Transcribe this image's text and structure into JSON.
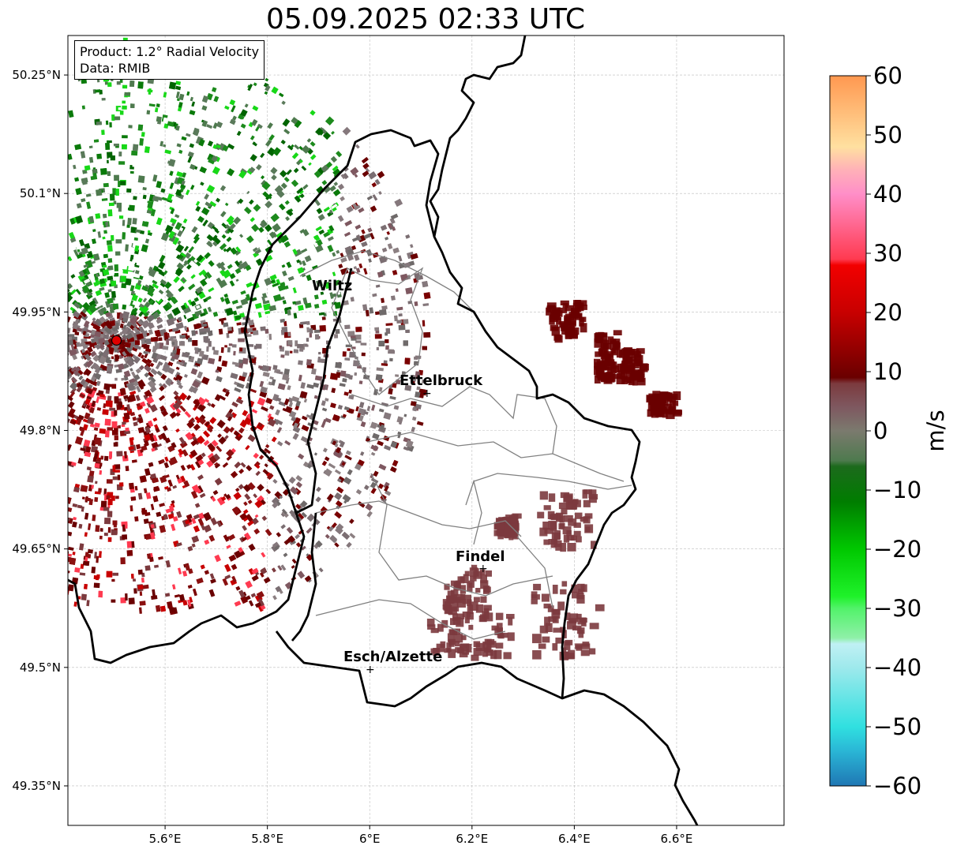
{
  "title": "05.09.2025 02:33 UTC",
  "info_box": {
    "product": "Product: 1.2° Radial Velocity",
    "data": "Data: RMIB"
  },
  "axes": {
    "lon_ticks": [
      "5.6°E",
      "5.8°E",
      "6°E",
      "6.2°E",
      "6.4°E",
      "6.6°E"
    ],
    "lat_ticks": [
      "50.25°N",
      "50.1°N",
      "49.95°N",
      "49.8°N",
      "49.65°N",
      "49.5°N",
      "49.35°N"
    ],
    "lon_tick_values": [
      5.6,
      5.8,
      6.0,
      6.2,
      6.4,
      6.6
    ],
    "lat_tick_values": [
      50.25,
      50.1,
      49.95,
      49.8,
      49.65,
      49.5,
      49.35
    ],
    "lon_range": [
      5.41,
      6.81
    ],
    "lat_range": [
      49.3,
      50.3
    ],
    "grid": true
  },
  "cities": [
    {
      "name": "Wiltz",
      "lon": 5.93,
      "lat": 49.965
    },
    {
      "name": "Ettelbruck",
      "lon": 6.104,
      "lat": 49.848
    },
    {
      "name": "Findel",
      "lon": 6.21,
      "lat": 49.627
    },
    {
      "name": "Esch/Alzette",
      "lon": 5.986,
      "lat": 49.498
    }
  ],
  "radar_site": {
    "lon": 5.505,
    "lat": 49.914,
    "color": "#e00000"
  },
  "colorbar": {
    "label": "m/s",
    "min": -60,
    "max": 60,
    "tick_labels": [
      "60",
      "50",
      "40",
      "30",
      "20",
      "10",
      "0",
      "−10",
      "−20",
      "−30",
      "−40",
      "−50",
      "−60"
    ],
    "tick_values": [
      60,
      50,
      40,
      30,
      20,
      10,
      0,
      -10,
      -20,
      -30,
      -40,
      -50,
      -60
    ],
    "stops": [
      {
        "v": -60,
        "color": "#1f77b4"
      },
      {
        "v": -54,
        "color": "#2ab7d6"
      },
      {
        "v": -50,
        "color": "#30e0e0"
      },
      {
        "v": -40,
        "color": "#9ee9ec"
      },
      {
        "v": -36,
        "color": "#c0f0f4"
      },
      {
        "v": -35,
        "color": "#8ff0a8"
      },
      {
        "v": -30,
        "color": "#52f26a"
      },
      {
        "v": -28,
        "color": "#1ff22a"
      },
      {
        "v": -20,
        "color": "#00c800"
      },
      {
        "v": -12,
        "color": "#007d00"
      },
      {
        "v": -6,
        "color": "#1c6a1c"
      },
      {
        "v": -5,
        "color": "#4e7a4e"
      },
      {
        "v": 0,
        "color": "#7b7a6e"
      },
      {
        "v": 4,
        "color": "#7e5860"
      },
      {
        "v": 8,
        "color": "#7c3a3e"
      },
      {
        "v": 9,
        "color": "#6a0000"
      },
      {
        "v": 20,
        "color": "#c80000"
      },
      {
        "v": 28,
        "color": "#f20000"
      },
      {
        "v": 29,
        "color": "#ff3a50"
      },
      {
        "v": 40,
        "color": "#ff8ec8"
      },
      {
        "v": 44,
        "color": "#ffb0b8"
      },
      {
        "v": 48,
        "color": "#ffe0a0"
      },
      {
        "v": 60,
        "color": "#ff9850"
      }
    ]
  }
}
